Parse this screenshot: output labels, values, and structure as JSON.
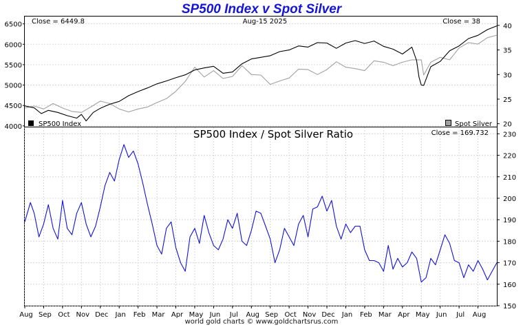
{
  "title": "SP500 Index v Spot Silver",
  "footer": "world gold charts © www.goldchartsrus.com",
  "chart_data": [
    {
      "type": "line",
      "header": {
        "close_left": "Close = 6449.8",
        "date": "Aug-15  2025",
        "close_right": "Close = 38"
      },
      "legend": [
        {
          "name": "SP500 Index",
          "color": "#000000",
          "position": "bottom-left"
        },
        {
          "name": "Spot Silver",
          "color": "#a0a0a0",
          "position": "bottom-right"
        }
      ],
      "y_left": {
        "ticks": [
          4000,
          4500,
          5000,
          5500,
          6000,
          6500
        ],
        "ylim": [
          3980,
          6680
        ]
      },
      "y_right": {
        "ticks": [
          20,
          25,
          30,
          35,
          40
        ],
        "ylim": [
          19.4,
          41.8
        ]
      },
      "grid": true,
      "series": [
        {
          "name": "SP500 Index",
          "axis": "left",
          "color": "#000000",
          "x": [
            0,
            0.02,
            0.035,
            0.05,
            0.07,
            0.09,
            0.11,
            0.12,
            0.13,
            0.145,
            0.16,
            0.18,
            0.2,
            0.22,
            0.24,
            0.26,
            0.28,
            0.3,
            0.32,
            0.34,
            0.36,
            0.38,
            0.4,
            0.42,
            0.44,
            0.46,
            0.48,
            0.5,
            0.52,
            0.54,
            0.56,
            0.58,
            0.6,
            0.62,
            0.64,
            0.66,
            0.68,
            0.7,
            0.72,
            0.74,
            0.76,
            0.78,
            0.8,
            0.82,
            0.83,
            0.835,
            0.84,
            0.845,
            0.86,
            0.88,
            0.9,
            0.92,
            0.94,
            0.96,
            0.98,
            1.0
          ],
          "values": [
            4490,
            4440,
            4300,
            4380,
            4330,
            4250,
            4190,
            4280,
            4120,
            4330,
            4430,
            4530,
            4600,
            4740,
            4840,
            4930,
            5030,
            5100,
            5180,
            5250,
            5370,
            5420,
            5460,
            5290,
            5320,
            5520,
            5640,
            5680,
            5720,
            5820,
            5860,
            5960,
            5930,
            6040,
            6030,
            5900,
            6030,
            6090,
            6020,
            6080,
            5950,
            5880,
            5760,
            5930,
            5600,
            5200,
            5000,
            4990,
            5450,
            5580,
            5840,
            5960,
            6140,
            6220,
            6360,
            6450
          ]
        },
        {
          "name": "Spot Silver",
          "axis": "right",
          "color": "#a0a0a0",
          "x": [
            0,
            0.02,
            0.04,
            0.06,
            0.08,
            0.1,
            0.12,
            0.14,
            0.16,
            0.18,
            0.2,
            0.22,
            0.24,
            0.26,
            0.28,
            0.3,
            0.32,
            0.34,
            0.36,
            0.38,
            0.4,
            0.42,
            0.44,
            0.46,
            0.48,
            0.5,
            0.52,
            0.54,
            0.56,
            0.58,
            0.6,
            0.62,
            0.64,
            0.66,
            0.68,
            0.7,
            0.72,
            0.74,
            0.76,
            0.78,
            0.8,
            0.82,
            0.84,
            0.845,
            0.86,
            0.88,
            0.9,
            0.92,
            0.94,
            0.96,
            0.98,
            1.0
          ],
          "values": [
            23.2,
            23.6,
            23.0,
            24.1,
            23.2,
            22.5,
            22.3,
            23.4,
            24.6,
            24.1,
            23.0,
            22.4,
            23.0,
            23.4,
            24.3,
            25.1,
            26.6,
            28.6,
            31.5,
            29.5,
            30.8,
            29.2,
            29.6,
            31.8,
            30.0,
            29.9,
            28.0,
            28.7,
            29.3,
            31.1,
            31.0,
            30.0,
            31.0,
            32.6,
            31.5,
            31.2,
            30.8,
            32.8,
            32.5,
            31.8,
            32.5,
            33.0,
            33.0,
            29.9,
            32.5,
            33.5,
            33.0,
            35.4,
            36.5,
            36.2,
            37.5,
            38.0
          ]
        }
      ]
    },
    {
      "type": "line",
      "title": "SP500 Index  /  Spot Silver Ratio",
      "close_label": "Close = 169.732",
      "y_right": {
        "ticks": [
          150,
          160,
          170,
          180,
          190,
          200,
          210,
          220,
          230
        ],
        "ylim": [
          150,
          233
        ]
      },
      "grid": true,
      "x_tick_labels": [
        "Aug",
        "Sep",
        "Oct",
        "Nov",
        "Dec",
        "Jan",
        "Feb",
        "Mar",
        "Apr",
        "May",
        "Jun",
        "Jul",
        "Aug",
        "Sep",
        "Oct",
        "Nov",
        "Dec",
        "Jan",
        "Feb",
        "Mar",
        "Apr",
        "May",
        "Jun",
        "Jul",
        "Aug"
      ],
      "series": [
        {
          "name": "SP500 Index  /  Spot Silver Ratio",
          "color": "#1010e0",
          "x": [
            0,
            0.012,
            0.02,
            0.03,
            0.04,
            0.05,
            0.06,
            0.07,
            0.08,
            0.09,
            0.1,
            0.11,
            0.12,
            0.13,
            0.14,
            0.15,
            0.16,
            0.17,
            0.18,
            0.19,
            0.2,
            0.21,
            0.22,
            0.23,
            0.24,
            0.25,
            0.26,
            0.27,
            0.28,
            0.29,
            0.3,
            0.31,
            0.32,
            0.33,
            0.34,
            0.35,
            0.36,
            0.37,
            0.38,
            0.39,
            0.4,
            0.41,
            0.42,
            0.43,
            0.44,
            0.45,
            0.46,
            0.47,
            0.48,
            0.49,
            0.5,
            0.51,
            0.52,
            0.53,
            0.54,
            0.55,
            0.56,
            0.57,
            0.58,
            0.59,
            0.6,
            0.61,
            0.62,
            0.63,
            0.64,
            0.65,
            0.66,
            0.67,
            0.68,
            0.69,
            0.7,
            0.71,
            0.72,
            0.73,
            0.74,
            0.75,
            0.76,
            0.77,
            0.78,
            0.79,
            0.8,
            0.81,
            0.82,
            0.83,
            0.84,
            0.85,
            0.86,
            0.87,
            0.88,
            0.89,
            0.9,
            0.91,
            0.92,
            0.93,
            0.94,
            0.95,
            0.96,
            0.97,
            0.98,
            0.99,
            1.0
          ],
          "values": [
            189,
            198,
            193,
            182,
            188,
            197,
            186,
            181,
            199,
            186,
            183,
            193,
            198,
            188,
            182,
            187,
            196,
            206,
            212,
            208,
            218,
            225,
            219,
            222,
            216,
            207,
            197,
            188,
            178,
            174,
            186,
            189,
            177,
            170,
            166,
            182,
            186,
            179,
            192,
            184,
            178,
            176,
            181,
            190,
            186,
            193,
            180,
            178,
            185,
            194,
            193,
            187,
            181,
            170,
            176,
            186,
            182,
            178,
            188,
            192,
            182,
            195,
            196,
            201,
            194,
            199,
            187,
            181,
            188,
            184,
            187,
            187,
            176,
            171,
            171,
            170,
            166,
            178,
            167,
            172,
            168,
            170,
            175,
            172,
            161,
            163,
            172,
            169,
            176,
            183,
            179,
            171,
            170,
            163,
            169,
            166,
            171,
            167,
            162,
            166,
            170
          ]
        }
      ]
    }
  ]
}
